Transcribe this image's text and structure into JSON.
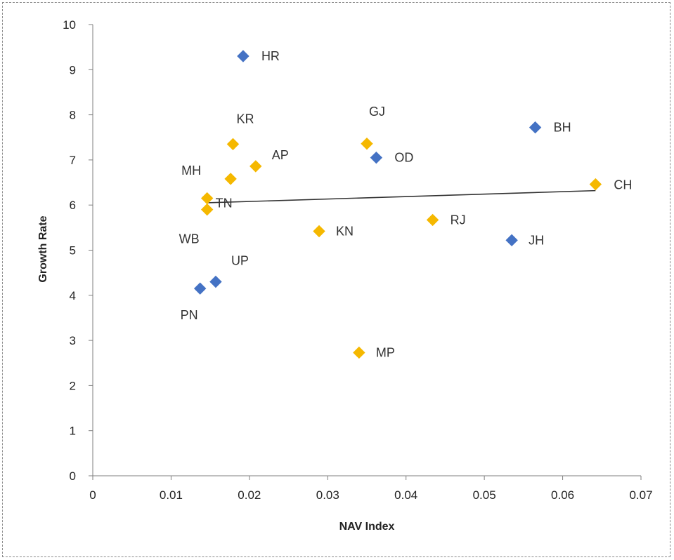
{
  "chart_data": {
    "type": "scatter",
    "title": "",
    "xlabel": "NAV Index",
    "ylabel": "Growth Rate",
    "xlim": [
      0,
      0.07
    ],
    "ylim": [
      0,
      10
    ],
    "x_ticks": [
      "0",
      "0.01",
      "0.02",
      "0.03",
      "0.04",
      "0.05",
      "0.06",
      "0.07"
    ],
    "y_ticks": [
      "0",
      "1",
      "2",
      "3",
      "4",
      "5",
      "6",
      "7",
      "8",
      "9",
      "10"
    ],
    "grid": false,
    "legend": "none",
    "colors": {
      "blue": "#4472c4",
      "orange": "#f5b800",
      "trend": "#333333",
      "axis": "#7f7f7f"
    },
    "points": [
      {
        "label": "HR",
        "x": 0.0192,
        "y": 9.3,
        "color": "blue"
      },
      {
        "label": "BH",
        "x": 0.0565,
        "y": 7.72,
        "color": "blue"
      },
      {
        "label": "OD",
        "x": 0.0362,
        "y": 7.05,
        "color": "blue"
      },
      {
        "label": "JH",
        "x": 0.0535,
        "y": 5.22,
        "color": "blue"
      },
      {
        "label": "UP",
        "x": 0.0157,
        "y": 4.3,
        "color": "blue"
      },
      {
        "label": "PN",
        "x": 0.0137,
        "y": 4.15,
        "color": "blue"
      },
      {
        "label": "KR",
        "x": 0.0179,
        "y": 7.35,
        "color": "orange"
      },
      {
        "label": "GJ",
        "x": 0.035,
        "y": 7.36,
        "color": "orange"
      },
      {
        "label": "AP",
        "x": 0.0208,
        "y": 6.86,
        "color": "orange"
      },
      {
        "label": "MH",
        "x": 0.0176,
        "y": 6.58,
        "color": "orange"
      },
      {
        "label": "TN",
        "x": 0.0146,
        "y": 6.15,
        "color": "orange"
      },
      {
        "label": "WB",
        "x": 0.0146,
        "y": 5.9,
        "color": "orange"
      },
      {
        "label": "CH",
        "x": 0.0642,
        "y": 6.46,
        "color": "orange"
      },
      {
        "label": "RJ",
        "x": 0.0434,
        "y": 5.67,
        "color": "orange"
      },
      {
        "label": "KN",
        "x": 0.0289,
        "y": 5.42,
        "color": "orange"
      },
      {
        "label": "MP",
        "x": 0.034,
        "y": 2.73,
        "color": "orange"
      }
    ],
    "trendline": {
      "x": [
        0.0146,
        0.0642
      ],
      "y": [
        6.05,
        6.32
      ]
    }
  }
}
